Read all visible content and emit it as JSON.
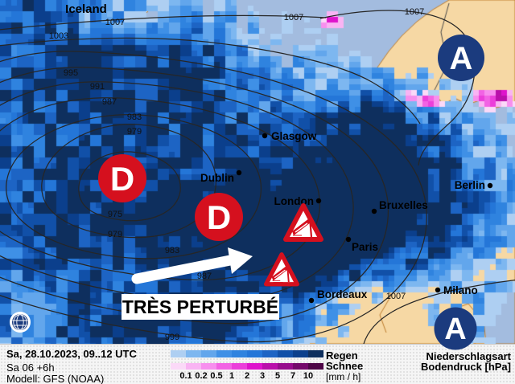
{
  "map": {
    "region_label": "Iceland",
    "cities": [
      {
        "name": "Glasgow"
      },
      {
        "name": "Dublin"
      },
      {
        "name": "London"
      },
      {
        "name": "Bruxelles"
      },
      {
        "name": "Paris"
      },
      {
        "name": "Bordeaux"
      },
      {
        "name": "Berlin"
      },
      {
        "name": "Milano"
      }
    ],
    "pressure_centers": [
      {
        "symbol": "D",
        "type": "low"
      },
      {
        "symbol": "D",
        "type": "low"
      },
      {
        "symbol": "A",
        "type": "high"
      },
      {
        "symbol": "A",
        "type": "high"
      }
    ],
    "isobars": [
      {
        "value": "1007"
      },
      {
        "value": "1007"
      },
      {
        "value": "1007"
      },
      {
        "value": "1003"
      },
      {
        "value": "995"
      },
      {
        "value": "991"
      },
      {
        "value": "987"
      },
      {
        "value": "983"
      },
      {
        "value": "979"
      },
      {
        "value": "975"
      },
      {
        "value": "979"
      },
      {
        "value": "983"
      },
      {
        "value": "987"
      },
      {
        "value": "999"
      },
      {
        "value": "1007"
      }
    ],
    "annotation": "TRÈS PERTURBÉ",
    "warning_triangle_count": 2
  },
  "footer": {
    "datetime": "Sa, 28.10.2023, 09..12 UTC",
    "run": "Sa 06 +6h",
    "model": "Modell: GFS (NOAA)",
    "legend": {
      "rain_label": "Regen",
      "snow_label": "Schnee",
      "unit": "[mm / h]",
      "ticks": [
        "0.1",
        "0.2",
        "0.5",
        "1",
        "2",
        "3",
        "5",
        "7",
        "10"
      ]
    },
    "right_title1": "Niederschlagsart",
    "right_title2": "Bodendruck [hPa]"
  },
  "colors": {
    "sea": "#a3bcdf",
    "land": "#f6d8a4",
    "coast": "#bd7c2e",
    "border_dark": "#4a4a4a",
    "isobar": "#262626",
    "low_red": "#d5101e",
    "high_navy": "#1b3b7e",
    "rain_palette": [
      "#aecff2",
      "#7db7f0",
      "#62a6ec",
      "#3f90e6",
      "#2f83df",
      "#2476d8",
      "#1d64c4",
      "#1150a8",
      "#0b3f8c",
      "#0e2f5e"
    ],
    "snow_palette": [
      "#fbd9f8",
      "#f9b4f3",
      "#f78fee",
      "#f263e4",
      "#eb3fda",
      "#de14cc",
      "#ba10ab",
      "#970d8d",
      "#74096b",
      "#4e0647"
    ]
  }
}
